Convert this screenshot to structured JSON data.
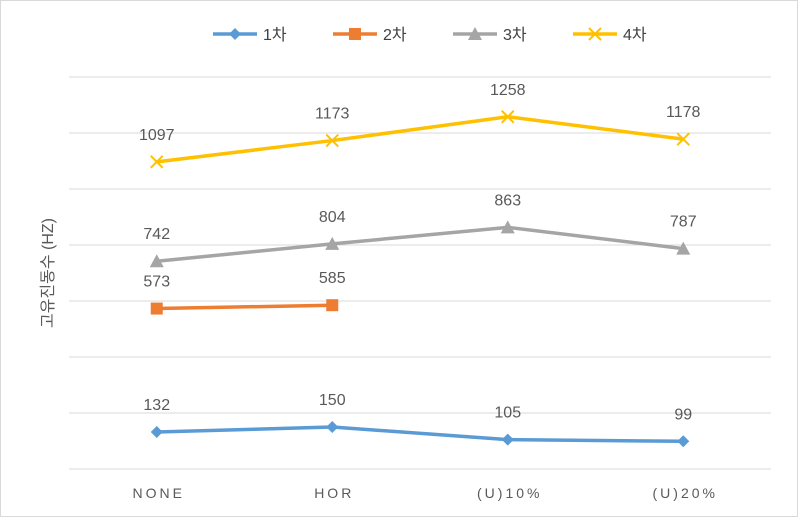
{
  "chart_data": {
    "type": "line",
    "title": "",
    "xlabel": "",
    "ylabel": "고유진동수 (HZ)",
    "categories": [
      "NONE",
      "HOR",
      "(U)10%",
      "(U)20%"
    ],
    "ylim": [
      0,
      1400
    ],
    "grid": true,
    "legend_position": "top",
    "series": [
      {
        "name": "1차",
        "color": "#5b9bd5",
        "marker": "diamond",
        "values": [
          132,
          150,
          105,
          99
        ]
      },
      {
        "name": "2차",
        "color": "#ed7d31",
        "marker": "square",
        "values": [
          573,
          585,
          null,
          null
        ]
      },
      {
        "name": "3차",
        "color": "#a5a5a5",
        "marker": "triangle",
        "values": [
          742,
          804,
          863,
          787
        ]
      },
      {
        "name": "4차",
        "color": "#ffc000",
        "marker": "x",
        "values": [
          1097,
          1173,
          1258,
          1178
        ]
      }
    ]
  }
}
